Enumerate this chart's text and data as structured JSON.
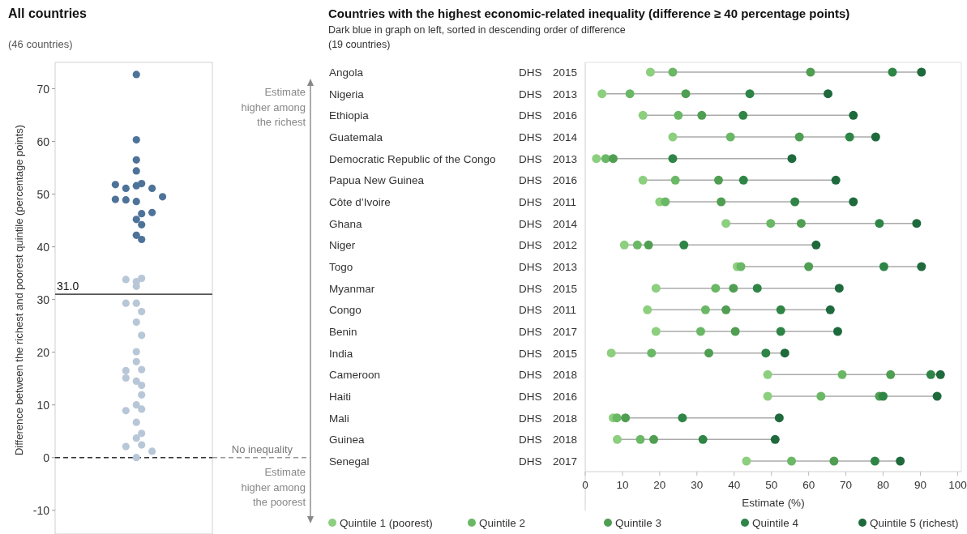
{
  "chart_data": [
    {
      "type": "scatter",
      "title": "All countries",
      "subtitle": "(46 countries)",
      "ylabel": "Difference between the richest and poorest quintile (percentage points)",
      "categories": [
        null,
        null,
        null,
        null,
        null,
        null,
        null,
        null,
        null,
        null,
        null,
        null,
        null,
        null,
        null,
        null,
        null,
        null,
        null,
        null,
        null,
        null,
        null,
        null,
        null,
        null,
        null,
        null,
        null,
        null
      ],
      "ylim": [
        -14.5,
        75
      ],
      "yticks": [
        -10,
        0,
        10,
        20,
        30,
        40,
        50,
        60,
        70
      ],
      "tick_labels": "y",
      "marker": "circle",
      "series": [
        {
          "color": "#4e7399",
          "values": [
            null,
            null,
            null,
            null,
            null,
            null,
            null,
            null,
            null,
            null,
            null,
            51.8,
            null,
            51.1,
            null,
            72.7,
            52.0,
            null,
            51.1,
            null,
            49.5,
            null,
            null,
            null,
            null,
            null,
            null,
            null,
            null,
            null
          ]
        },
        {
          "color": "#4e7399",
          "values": [
            null,
            null,
            null,
            null,
            null,
            null,
            null,
            null,
            null,
            null,
            null,
            49.0,
            null,
            48.9,
            null,
            60.3,
            46.3,
            null,
            46.5,
            null,
            null,
            null,
            null,
            null,
            null,
            null,
            null,
            null,
            null,
            null
          ]
        },
        {
          "color": "#4e7399",
          "values": [
            null,
            null,
            null,
            null,
            null,
            null,
            null,
            null,
            null,
            null,
            null,
            null,
            null,
            null,
            null,
            56.5,
            44.2,
            null,
            null,
            null,
            null,
            null,
            null,
            null,
            null,
            null,
            null,
            null,
            null,
            null
          ]
        },
        {
          "color": "#4e7399",
          "values": [
            null,
            null,
            null,
            null,
            null,
            null,
            null,
            null,
            null,
            null,
            null,
            null,
            null,
            null,
            null,
            54.4,
            41.4,
            null,
            null,
            null,
            null,
            null,
            null,
            null,
            null,
            null,
            null,
            null,
            null,
            null
          ]
        },
        {
          "color": "#4e7399",
          "values": [
            null,
            null,
            null,
            null,
            null,
            null,
            null,
            null,
            null,
            null,
            null,
            null,
            null,
            null,
            null,
            51.6,
            null,
            null,
            null,
            null,
            null,
            null,
            null,
            null,
            null,
            null,
            null,
            null,
            null,
            null
          ]
        },
        {
          "color": "#4e7399",
          "values": [
            null,
            null,
            null,
            null,
            null,
            null,
            null,
            null,
            null,
            null,
            null,
            null,
            null,
            null,
            null,
            48.6,
            null,
            null,
            null,
            null,
            null,
            null,
            null,
            null,
            null,
            null,
            null,
            null,
            null,
            null
          ]
        },
        {
          "color": "#4e7399",
          "values": [
            null,
            null,
            null,
            null,
            null,
            null,
            null,
            null,
            null,
            null,
            null,
            null,
            null,
            null,
            null,
            45.2,
            null,
            null,
            null,
            null,
            null,
            null,
            null,
            null,
            null,
            null,
            null,
            null,
            null,
            null
          ]
        },
        {
          "color": "#4e7399",
          "values": [
            null,
            null,
            null,
            null,
            null,
            null,
            null,
            null,
            null,
            null,
            null,
            null,
            null,
            null,
            null,
            42.2,
            null,
            null,
            null,
            null,
            null,
            null,
            null,
            null,
            null,
            null,
            null,
            null,
            null,
            null
          ]
        },
        {
          "color": "#b8c7d8",
          "values": [
            null,
            null,
            null,
            null,
            null,
            null,
            null,
            null,
            null,
            null,
            null,
            null,
            null,
            33.8,
            null,
            33.4,
            34.0,
            null,
            1.2,
            null,
            null,
            null,
            null,
            null,
            null,
            null,
            null,
            null,
            null,
            null
          ]
        },
        {
          "color": "#b8c7d8",
          "values": [
            null,
            null,
            null,
            null,
            null,
            null,
            null,
            null,
            null,
            null,
            null,
            null,
            null,
            29.3,
            null,
            32.5,
            27.7,
            null,
            null,
            null,
            null,
            null,
            null,
            null,
            null,
            null,
            null,
            null,
            null,
            null
          ]
        },
        {
          "color": "#b8c7d8",
          "values": [
            null,
            null,
            null,
            null,
            null,
            null,
            null,
            null,
            null,
            null,
            null,
            null,
            null,
            16.5,
            null,
            29.3,
            23.2,
            null,
            null,
            null,
            null,
            null,
            null,
            null,
            null,
            null,
            null,
            null,
            null,
            null
          ]
        },
        {
          "color": "#b8c7d8",
          "values": [
            null,
            null,
            null,
            null,
            null,
            null,
            null,
            null,
            null,
            null,
            null,
            null,
            null,
            15.1,
            null,
            25.7,
            16.7,
            null,
            null,
            null,
            null,
            null,
            null,
            null,
            null,
            null,
            null,
            null,
            null,
            null
          ]
        },
        {
          "color": "#b8c7d8",
          "values": [
            null,
            null,
            null,
            null,
            null,
            null,
            null,
            null,
            null,
            null,
            null,
            null,
            null,
            8.9,
            null,
            20.1,
            13.7,
            null,
            null,
            null,
            null,
            null,
            null,
            null,
            null,
            null,
            null,
            null,
            null,
            null
          ]
        },
        {
          "color": "#b8c7d8",
          "values": [
            null,
            null,
            null,
            null,
            null,
            null,
            null,
            null,
            null,
            null,
            null,
            null,
            null,
            2.1,
            null,
            18.2,
            11.9,
            null,
            null,
            null,
            null,
            null,
            null,
            null,
            null,
            null,
            null,
            null,
            null,
            null
          ]
        },
        {
          "color": "#b8c7d8",
          "values": [
            null,
            null,
            null,
            null,
            null,
            null,
            null,
            null,
            null,
            null,
            null,
            null,
            null,
            null,
            null,
            14.5,
            9.2,
            null,
            null,
            null,
            null,
            null,
            null,
            null,
            null,
            null,
            null,
            null,
            null,
            null
          ]
        },
        {
          "color": "#b8c7d8",
          "values": [
            null,
            null,
            null,
            null,
            null,
            null,
            null,
            null,
            null,
            null,
            null,
            null,
            null,
            null,
            null,
            10.0,
            4.6,
            null,
            null,
            null,
            null,
            null,
            null,
            null,
            null,
            null,
            null,
            null,
            null,
            null
          ]
        },
        {
          "color": "#b8c7d8",
          "values": [
            null,
            null,
            null,
            null,
            null,
            null,
            null,
            null,
            null,
            null,
            null,
            null,
            null,
            null,
            null,
            6.7,
            2.4,
            null,
            null,
            null,
            null,
            null,
            null,
            null,
            null,
            null,
            null,
            null,
            null,
            null
          ]
        },
        {
          "color": "#b8c7d8",
          "values": [
            null,
            null,
            null,
            null,
            null,
            null,
            null,
            null,
            null,
            null,
            null,
            null,
            null,
            null,
            null,
            3.7,
            null,
            null,
            null,
            null,
            null,
            null,
            null,
            null,
            null,
            null,
            null,
            null,
            null,
            null
          ]
        },
        {
          "color": "#b8c7d8",
          "values": [
            null,
            null,
            null,
            null,
            null,
            null,
            null,
            null,
            null,
            null,
            null,
            null,
            null,
            null,
            null,
            0.0,
            null,
            null,
            null,
            null,
            null,
            null,
            null,
            null,
            null,
            null,
            null,
            null,
            null,
            null
          ]
        }
      ],
      "ref_lines": [
        {
          "axis": "y",
          "value": 31,
          "label": "31.0",
          "line_style": "solid",
          "color": "#555555"
        },
        {
          "axis": "y",
          "value": 0,
          "label": "No inequality",
          "line_style": "dashed",
          "color": "#333333"
        }
      ],
      "annotations": [
        "Estimate higher among the richest",
        "Estimate higher among the poorest"
      ]
    },
    {
      "type": "scatter",
      "orientation": "horizontal",
      "title": "Countries with the highest economic-related inequality (difference ≥ 40 percentage points)",
      "subtitle": "Dark blue in graph on left, sorted in descending order of difference\n(19 countries)",
      "xlabel": "Estimate (%)",
      "xlim": [
        0,
        101
      ],
      "xticks": [
        0,
        10,
        20,
        30,
        40,
        50,
        60,
        70,
        80,
        90,
        100
      ],
      "legend": "bottom",
      "marker": "circle",
      "categories": [
        "Angola",
        "Nigeria",
        "Ethiopia",
        "Guatemala",
        "Democratic Republic of the Congo",
        "Papua New Guinea",
        "Côte d’Ivoire",
        "Ghana",
        "Niger",
        "Togo",
        "Myanmar",
        "Congo",
        "Benin",
        "India",
        "Cameroon",
        "Haiti",
        "Mali",
        "Guinea",
        "Senegal"
      ],
      "series": [
        {
          "name": "Quintile 1 (poorest)",
          "color": "#8ccf7e",
          "values": [
            17.5,
            4.5,
            15.5,
            23.5,
            3,
            15.5,
            20,
            37.8,
            10.5,
            40.8,
            19,
            16.7,
            19,
            7,
            49,
            49,
            7.5,
            8.6,
            43.3
          ]
        },
        {
          "name": "Quintile 2",
          "color": "#6ab865",
          "values": [
            23.5,
            12,
            25,
            39,
            5.5,
            24.2,
            21.5,
            49.8,
            14,
            41.8,
            35,
            32.3,
            31,
            17.8,
            69,
            63.3,
            8.5,
            14.8,
            55.4
          ]
        },
        {
          "name": "Quintile 3",
          "color": "#4f9e52",
          "values": [
            60.5,
            27,
            31.3,
            57.5,
            7.5,
            35.8,
            36.5,
            58,
            17,
            60,
            39.8,
            37.8,
            40.3,
            33.2,
            82,
            79,
            10.8,
            18.4,
            66.8
          ]
        },
        {
          "name": "Quintile 4",
          "color": "#2e8546",
          "values": [
            82.5,
            44.2,
            42.4,
            71,
            23.5,
            42.5,
            56.3,
            79,
            26.5,
            80.2,
            46.2,
            52.5,
            52.5,
            48.5,
            92.8,
            80,
            26.1,
            31.6,
            77.8
          ]
        },
        {
          "name": "Quintile 5 (richest)",
          "color": "#1f6a3d",
          "values": [
            90.3,
            65.2,
            72,
            78,
            55.5,
            67.3,
            72,
            89,
            62,
            90.3,
            68.2,
            65.8,
            67.8,
            53.6,
            95.4,
            94.5,
            52.1,
            51,
            84.6
          ]
        }
      ],
      "annotations": [
        "DHS",
        "2015",
        "DHS",
        "2013",
        "DHS",
        "2016",
        "DHS",
        "2014",
        "DHS",
        "2013",
        "DHS",
        "2016",
        "DHS",
        "2011",
        "DHS",
        "2014",
        "DHS",
        "2012",
        "DHS",
        "2013",
        "DHS",
        "2015",
        "DHS",
        "2011",
        "DHS",
        "2017",
        "DHS",
        "2015",
        "DHS",
        "2018",
        "DHS",
        "2016",
        "DHS",
        "2018",
        "DHS",
        "2018",
        "DHS",
        "2017"
      ]
    }
  ]
}
